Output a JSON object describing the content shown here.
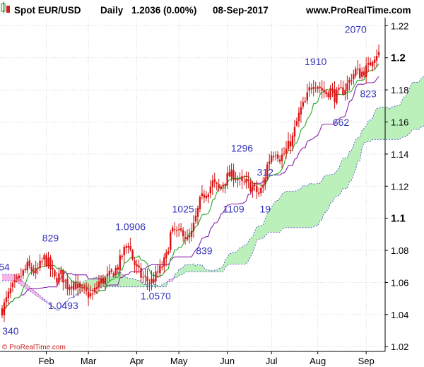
{
  "header": {
    "title": "Spot EUR/USD",
    "interval": "Daily",
    "price_change": "1.2036 (0.00%)",
    "date": "08-Sep-2017",
    "site": "www.ProRealTime.com"
  },
  "watermark": "© ProRealTime.com",
  "chart_data": {
    "type": "candlestick",
    "instrument": "Spot EUR/USD",
    "period": "Daily",
    "last_close": 1.2036,
    "ylim": [
      1.017,
      1.225
    ],
    "y_ticks": [
      {
        "value": 1.22,
        "label": "1.22",
        "major": false
      },
      {
        "value": 1.2,
        "label": "1.2",
        "major": true
      },
      {
        "value": 1.18,
        "label": "1.18",
        "major": false
      },
      {
        "value": 1.16,
        "label": "1.16",
        "major": false
      },
      {
        "value": 1.14,
        "label": "1.14",
        "major": false
      },
      {
        "value": 1.12,
        "label": "1.12",
        "major": false
      },
      {
        "value": 1.1,
        "label": "1.1",
        "major": true
      },
      {
        "value": 1.08,
        "label": "1.08",
        "major": false
      },
      {
        "value": 1.06,
        "label": "1.06",
        "major": false
      },
      {
        "value": 1.04,
        "label": "1.04",
        "major": false
      },
      {
        "value": 1.02,
        "label": "1.02",
        "major": false
      }
    ],
    "x_ticks": [
      {
        "day": 21,
        "label": "Feb"
      },
      {
        "day": 41,
        "label": "Mar"
      },
      {
        "day": 64,
        "label": "Apr"
      },
      {
        "day": 84,
        "label": "May"
      },
      {
        "day": 107,
        "label": "Jun"
      },
      {
        "day": 128,
        "label": "Jul"
      },
      {
        "day": 150,
        "label": "Aug"
      },
      {
        "day": 173,
        "label": "Sep"
      }
    ],
    "x_range": [
      0,
      181
    ],
    "grid": true,
    "price_path": [
      [
        0,
        1.043
      ],
      [
        4,
        1.055
      ],
      [
        8,
        1.062
      ],
      [
        12,
        1.07
      ],
      [
        16,
        1.066
      ],
      [
        20,
        1.075
      ],
      [
        22,
        1.072
      ],
      [
        25,
        1.062
      ],
      [
        28,
        1.065
      ],
      [
        31,
        1.058
      ],
      [
        34,
        1.06
      ],
      [
        37,
        1.055
      ],
      [
        40,
        1.053
      ],
      [
        43,
        1.052
      ],
      [
        46,
        1.06
      ],
      [
        49,
        1.062
      ],
      [
        52,
        1.065
      ],
      [
        55,
        1.07
      ],
      [
        58,
        1.08
      ],
      [
        60,
        1.085
      ],
      [
        62,
        1.075
      ],
      [
        64,
        1.068
      ],
      [
        66,
        1.064
      ],
      [
        68,
        1.062
      ],
      [
        70,
        1.06
      ],
      [
        72,
        1.062
      ],
      [
        74,
        1.066
      ],
      [
        76,
        1.07
      ],
      [
        78,
        1.076
      ],
      [
        80,
        1.09
      ],
      [
        82,
        1.092
      ],
      [
        84,
        1.09
      ],
      [
        86,
        1.092
      ],
      [
        88,
        1.086
      ],
      [
        90,
        1.09
      ],
      [
        92,
        1.1
      ],
      [
        94,
        1.11
      ],
      [
        96,
        1.115
      ],
      [
        98,
        1.118
      ],
      [
        100,
        1.122
      ],
      [
        103,
        1.118
      ],
      [
        106,
        1.124
      ],
      [
        108,
        1.127
      ],
      [
        110,
        1.127
      ],
      [
        112,
        1.125
      ],
      [
        114,
        1.121
      ],
      [
        116,
        1.122
      ],
      [
        118,
        1.12
      ],
      [
        120,
        1.118
      ],
      [
        122,
        1.115
      ],
      [
        124,
        1.12
      ],
      [
        126,
        1.133
      ],
      [
        128,
        1.14
      ],
      [
        130,
        1.142
      ],
      [
        132,
        1.138
      ],
      [
        134,
        1.14
      ],
      [
        136,
        1.145
      ],
      [
        138,
        1.15
      ],
      [
        140,
        1.16
      ],
      [
        142,
        1.168
      ],
      [
        144,
        1.172
      ],
      [
        146,
        1.18
      ],
      [
        148,
        1.185
      ],
      [
        150,
        1.183
      ],
      [
        152,
        1.18
      ],
      [
        154,
        1.178
      ],
      [
        156,
        1.18
      ],
      [
        158,
        1.176
      ],
      [
        160,
        1.178
      ],
      [
        162,
        1.18
      ],
      [
        164,
        1.183
      ],
      [
        166,
        1.188
      ],
      [
        168,
        1.192
      ],
      [
        170,
        1.19
      ],
      [
        172,
        1.192
      ],
      [
        174,
        1.194
      ],
      [
        176,
        1.2
      ],
      [
        178,
        1.203
      ],
      [
        179,
        1.2036
      ]
    ],
    "indicators": [
      {
        "type": "ichimoku_tenkan",
        "color": "#22aa22"
      },
      {
        "type": "ichimoku_kijun",
        "color": "#8822aa"
      },
      {
        "type": "ichimoku_cloud",
        "bullish_color": "#bbf0bb",
        "bearish_color": "#f6b6e6",
        "edge_color": "#4444cc"
      }
    ],
    "annotations": [
      {
        "text": "2070",
        "day": 168,
        "price": 1.2155
      },
      {
        "text": "1910",
        "day": 149,
        "price": 1.1955
      },
      {
        "text": "823",
        "day": 174,
        "price": 1.1755
      },
      {
        "text": "662",
        "day": 161,
        "price": 1.1575
      },
      {
        "text": "1296",
        "day": 114,
        "price": 1.1415
      },
      {
        "text": "312",
        "day": 125,
        "price": 1.1265
      },
      {
        "text": "1025",
        "day": 86,
        "price": 1.1035
      },
      {
        "text": "1109",
        "day": 110,
        "price": 1.1035
      },
      {
        "text": "19",
        "day": 125,
        "price": 1.1035
      },
      {
        "text": "1.0906",
        "day": 61,
        "price": 1.0925
      },
      {
        "text": "829",
        "day": 23,
        "price": 1.0855
      },
      {
        "text": "839",
        "day": 96,
        "price": 1.0775
      },
      {
        "text": "54",
        "day": 1,
        "price": 1.0675
      },
      {
        "text": "1.0570",
        "day": 73,
        "price": 1.0495
      },
      {
        "text": "1.0493",
        "day": 29,
        "price": 1.0435
      },
      {
        "text": "340",
        "day": 4,
        "price": 1.0275
      }
    ]
  }
}
